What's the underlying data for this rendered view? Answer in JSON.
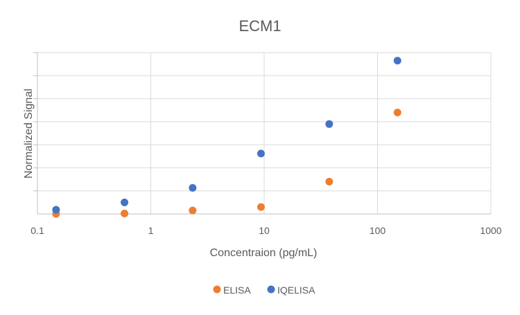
{
  "chart_data": {
    "type": "scatter",
    "title": "ECM1",
    "xlabel": "Concentraion (pg/mL)",
    "ylabel": "Normalized Signal",
    "x_scale": "log",
    "xlim": [
      0.1,
      1000
    ],
    "x_ticks": [
      "0.1",
      "1",
      "10",
      "100",
      "1000"
    ],
    "y_tick_labels_shown": false,
    "ylim": [
      0,
      7
    ],
    "grid": true,
    "legend_position": "bottom",
    "series": [
      {
        "name": "ELISA",
        "color": "#ED7D31",
        "points": [
          {
            "x": 0.146,
            "y": 0.0
          },
          {
            "x": 0.586,
            "y": 0.02
          },
          {
            "x": 2.34,
            "y": 0.15
          },
          {
            "x": 9.38,
            "y": 0.3
          },
          {
            "x": 37.5,
            "y": 1.4
          },
          {
            "x": 150,
            "y": 4.4
          }
        ]
      },
      {
        "name": "IQELISA",
        "color": "#4472C4",
        "points": [
          {
            "x": 0.146,
            "y": 0.18
          },
          {
            "x": 0.586,
            "y": 0.5
          },
          {
            "x": 2.34,
            "y": 1.13
          },
          {
            "x": 9.38,
            "y": 2.62
          },
          {
            "x": 37.5,
            "y": 3.9
          },
          {
            "x": 150,
            "y": 6.65
          }
        ]
      }
    ]
  }
}
